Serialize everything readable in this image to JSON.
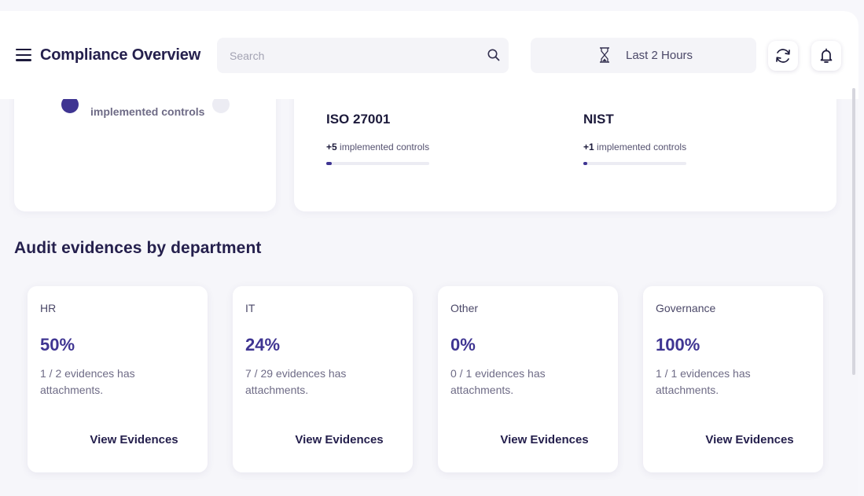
{
  "header": {
    "title": "Compliance Overview",
    "search_placeholder": "Search",
    "time_range": "Last 2 Hours"
  },
  "summary": {
    "left_card_label": "implemented controls",
    "frameworks": [
      {
        "name": "ISO 27001",
        "delta": "+5",
        "label": "implemented controls",
        "progress": 0.05
      },
      {
        "name": "NIST",
        "delta": "+1",
        "label": "implemented controls",
        "progress": 0.04
      }
    ]
  },
  "audit": {
    "title": "Audit evidences by department",
    "departments": [
      {
        "name": "HR",
        "percent": "50%",
        "description": "1 / 2 evidences has attachments.",
        "action": "View Evidences"
      },
      {
        "name": "IT",
        "percent": "24%",
        "description": "7 / 29 evidences has attachments.",
        "action": "View Evidences"
      },
      {
        "name": "Other",
        "percent": "0%",
        "description": "0 / 1 evidences has attachments.",
        "action": "View Evidences"
      },
      {
        "name": "Governance",
        "percent": "100%",
        "description": "1 / 1 evidences has attachments.",
        "action": "View Evidences"
      }
    ]
  },
  "colors": {
    "accent": "#3f3592",
    "background": "#f6f6fa",
    "card": "#ffffff"
  },
  "icons": [
    "menu-icon",
    "search-icon",
    "hourglass-icon",
    "refresh-icon",
    "bell-icon"
  ]
}
